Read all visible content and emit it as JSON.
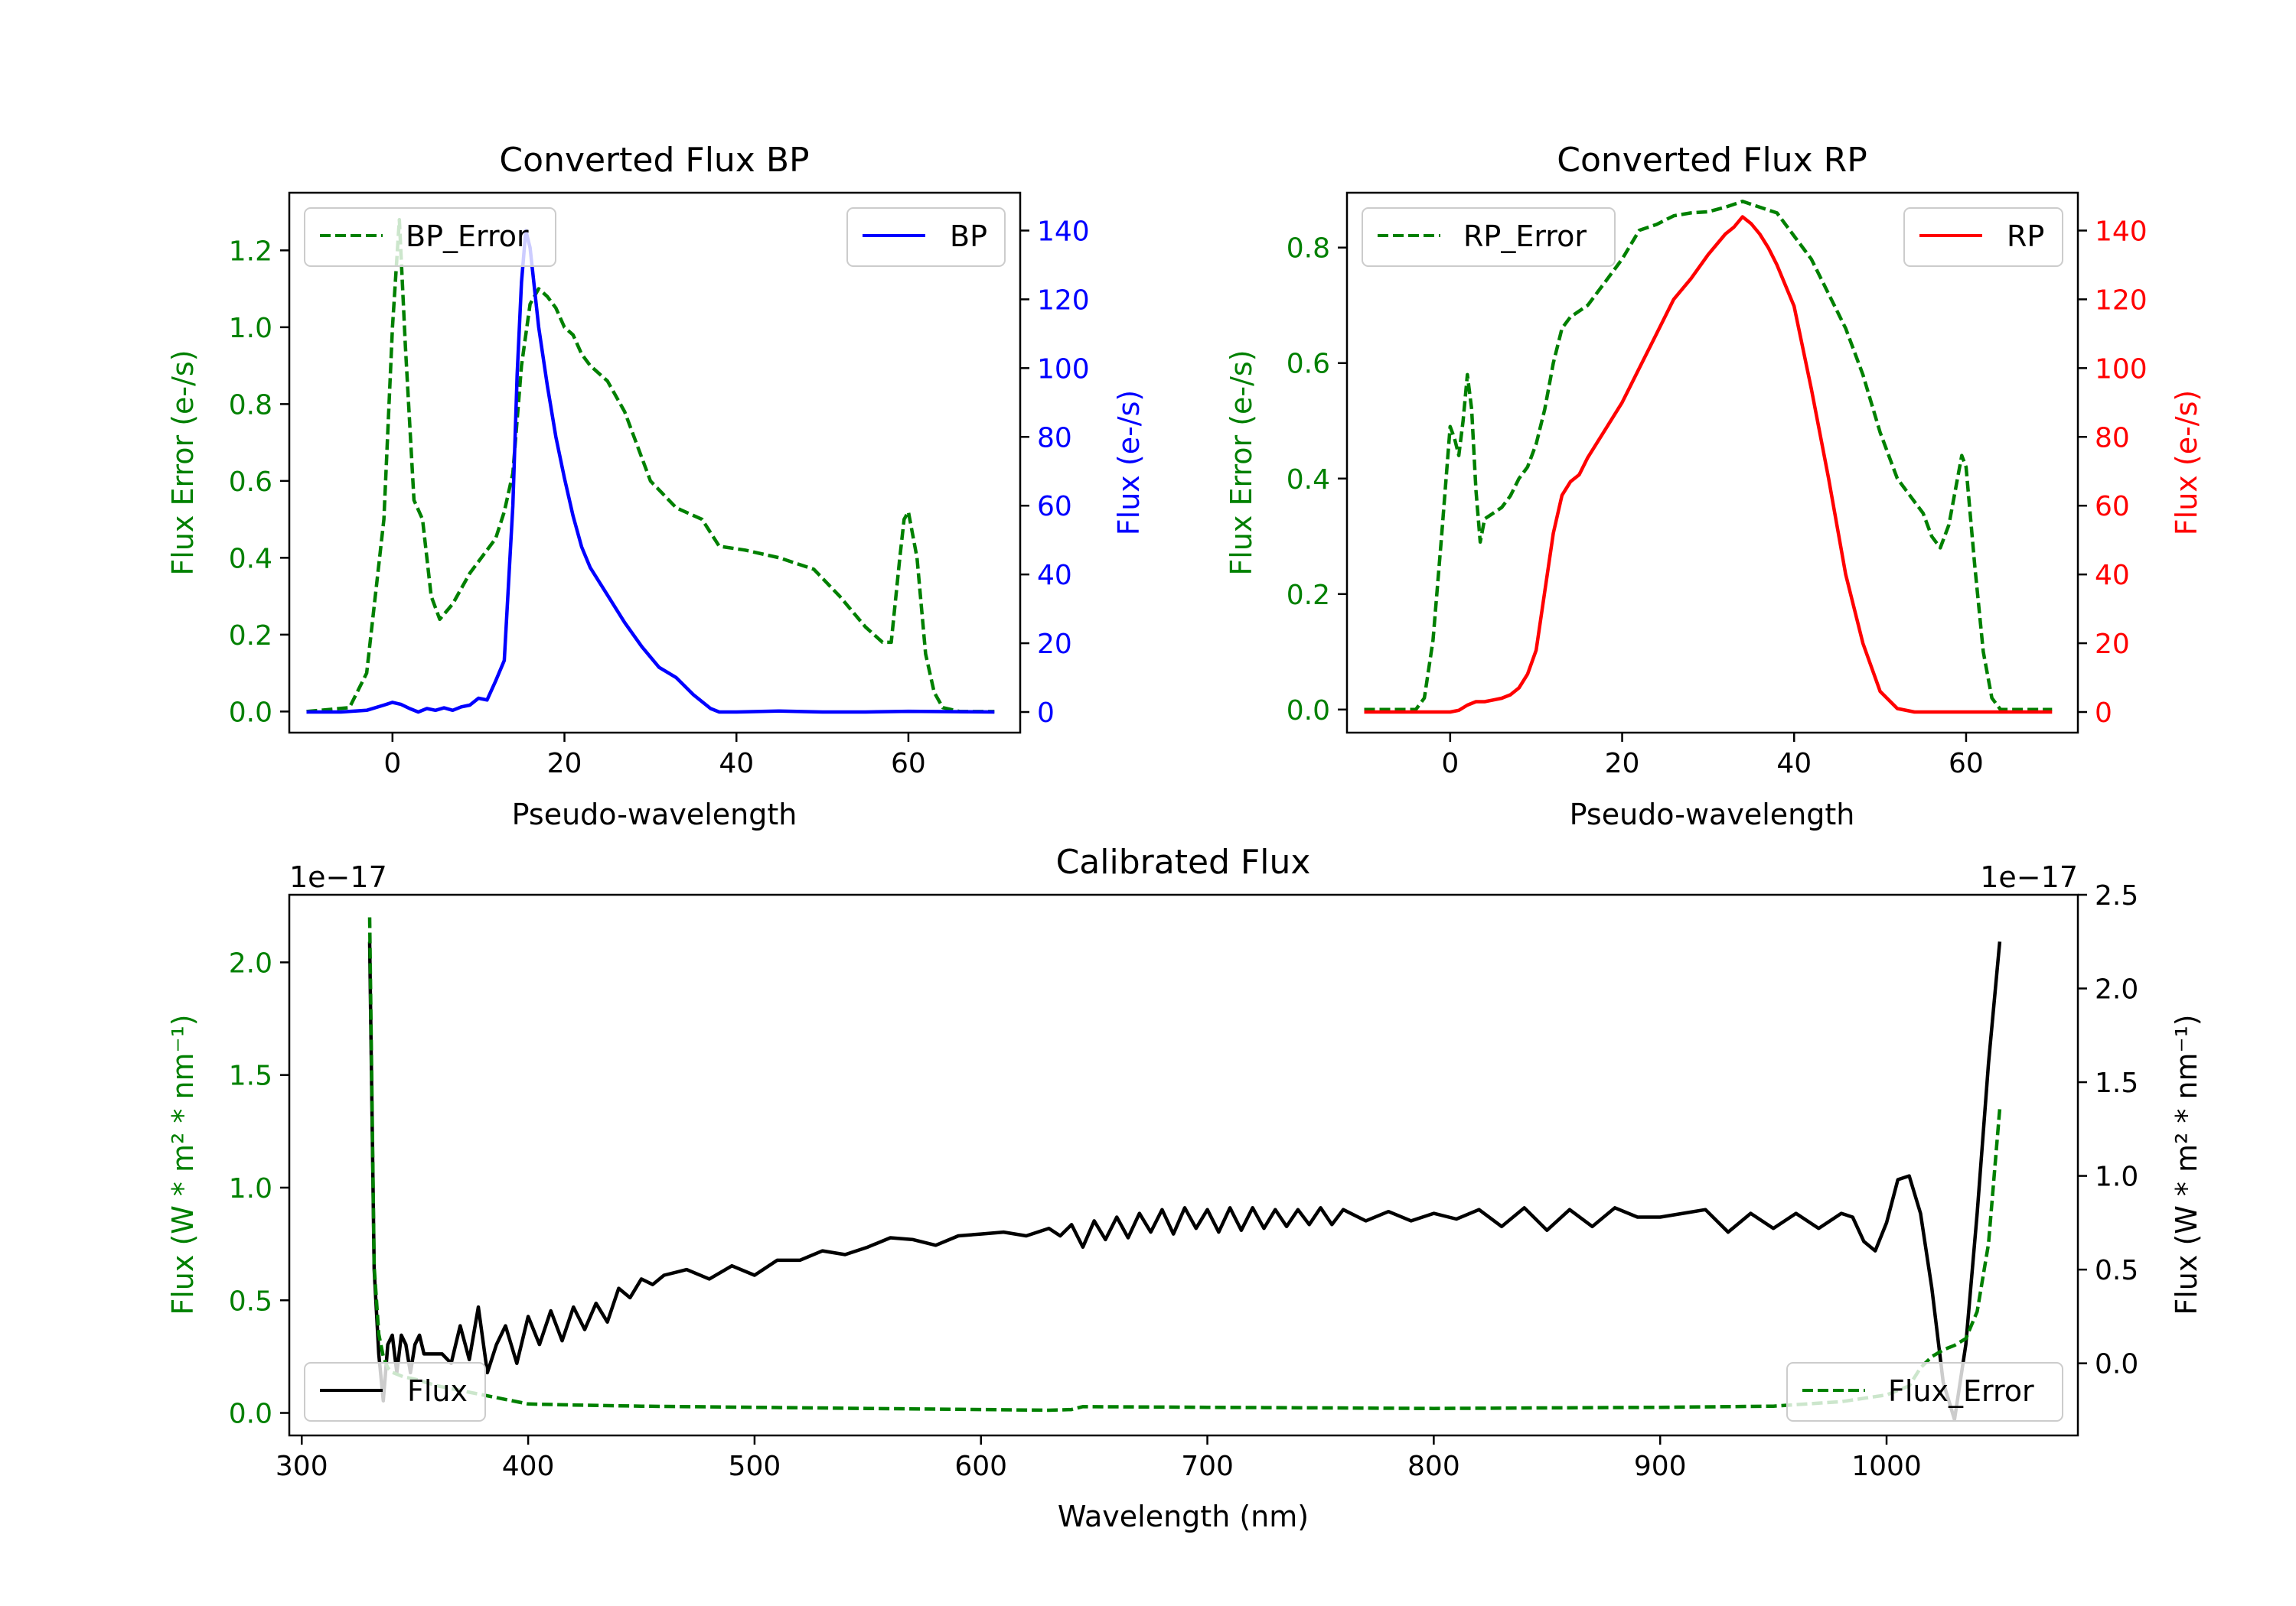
{
  "colors": {
    "bp": "#0000ff",
    "rp": "#ff0000",
    "err": "#008000",
    "flux": "#000000",
    "axis": "#000000"
  },
  "chart_data": [
    {
      "type": "line",
      "title": "Converted Flux BP",
      "xlabel": "Pseudo-wavelength",
      "ylabel_left": "Flux Error (e-/s)",
      "ylabel_right": "Flux (e-/s)",
      "xlim": [
        -12,
        73
      ],
      "ylim_left": [
        -0.055,
        1.35
      ],
      "ylim_right": [
        -6,
        151
      ],
      "xticks": [
        "0",
        "20",
        "40",
        "60"
      ],
      "yticks_left": [
        "0.0",
        "0.2",
        "0.4",
        "0.6",
        "0.8",
        "1.0",
        "1.2"
      ],
      "yticks_right": [
        "0",
        "20",
        "40",
        "60",
        "80",
        "100",
        "120",
        "140"
      ],
      "legend_left": "BP_Error",
      "legend_right": "BP",
      "series": [
        {
          "name": "BP_Error",
          "axis": "left",
          "style": "dashed",
          "color": "#008000",
          "x": [
            -10,
            -5,
            -3,
            -1,
            0,
            0.8,
            1.5,
            2.5,
            3.5,
            4.5,
            5.5,
            7,
            9,
            11,
            12,
            13,
            14,
            15,
            16,
            17,
            18,
            19,
            20,
            21,
            22,
            23,
            25,
            27,
            30,
            33,
            36,
            38,
            41,
            45,
            49,
            52,
            55,
            57,
            58,
            59,
            59.5,
            60,
            61,
            62,
            63,
            64,
            66,
            70
          ],
          "y": [
            0,
            0.01,
            0.1,
            0.5,
            1.0,
            1.28,
            0.95,
            0.55,
            0.5,
            0.3,
            0.24,
            0.28,
            0.36,
            0.42,
            0.45,
            0.52,
            0.62,
            0.9,
            1.06,
            1.1,
            1.08,
            1.05,
            1.0,
            0.98,
            0.93,
            0.9,
            0.86,
            0.78,
            0.6,
            0.53,
            0.5,
            0.43,
            0.42,
            0.4,
            0.37,
            0.3,
            0.22,
            0.18,
            0.18,
            0.4,
            0.5,
            0.52,
            0.4,
            0.15,
            0.05,
            0.01,
            0,
            0
          ]
        },
        {
          "name": "BP",
          "axis": "right",
          "style": "solid",
          "color": "#0000ff",
          "x": [
            -10,
            -6,
            -3,
            -1,
            0,
            1,
            2,
            3,
            4,
            5,
            6,
            7,
            8,
            9,
            10,
            11,
            12,
            13,
            14,
            14.5,
            15,
            15.5,
            16,
            17,
            18,
            19,
            20,
            21,
            22,
            23,
            25,
            27,
            29,
            31,
            33,
            35,
            37,
            38,
            40,
            45,
            50,
            55,
            60,
            70
          ],
          "y": [
            0,
            0,
            0.5,
            2,
            2.8,
            2.2,
            1,
            0,
            1,
            0.5,
            1.2,
            0.5,
            1.5,
            2,
            4,
            3.5,
            9,
            15,
            60,
            98,
            125,
            140,
            135,
            112,
            95,
            80,
            68,
            57,
            48,
            42,
            34,
            26,
            19,
            13,
            10,
            5,
            1,
            0,
            0,
            0.3,
            0,
            0,
            0.2,
            0
          ]
        }
      ]
    },
    {
      "type": "line",
      "title": "Converted Flux RP",
      "xlabel": "Pseudo-wavelength",
      "ylabel_left": "Flux Error (e-/s)",
      "ylabel_right": "Flux (e-/s)",
      "xlim": [
        -12,
        73
      ],
      "ylim_left": [
        -0.04,
        0.895
      ],
      "ylim_right": [
        -6,
        151
      ],
      "xticks": [
        "0",
        "20",
        "40",
        "60"
      ],
      "yticks_left": [
        "0.0",
        "0.2",
        "0.4",
        "0.6",
        "0.8"
      ],
      "yticks_right": [
        "0",
        "20",
        "40",
        "60",
        "80",
        "100",
        "120",
        "140"
      ],
      "legend_left": "RP_Error",
      "legend_right": "RP",
      "series": [
        {
          "name": "RP_Error",
          "axis": "left",
          "style": "dashed",
          "color": "#008000",
          "x": [
            -10,
            -4,
            -3,
            -2,
            -1,
            0,
            0.5,
            1,
            1.5,
            2,
            2.5,
            3,
            3.5,
            4,
            5,
            6,
            7,
            8,
            9,
            10,
            11,
            12,
            13,
            14,
            15,
            16,
            18,
            20,
            22,
            24,
            26,
            28,
            30,
            32,
            34,
            36,
            38,
            40,
            42,
            44,
            46,
            48,
            50,
            52,
            54,
            55,
            56,
            57,
            58,
            59,
            59.5,
            60,
            61,
            62,
            63,
            64,
            70
          ],
          "y": [
            0,
            0,
            0.02,
            0.12,
            0.3,
            0.49,
            0.47,
            0.44,
            0.5,
            0.58,
            0.52,
            0.38,
            0.29,
            0.33,
            0.34,
            0.35,
            0.37,
            0.4,
            0.42,
            0.46,
            0.52,
            0.6,
            0.66,
            0.68,
            0.69,
            0.7,
            0.74,
            0.78,
            0.83,
            0.84,
            0.855,
            0.86,
            0.862,
            0.87,
            0.88,
            0.87,
            0.86,
            0.82,
            0.78,
            0.72,
            0.66,
            0.58,
            0.48,
            0.4,
            0.36,
            0.34,
            0.3,
            0.28,
            0.32,
            0.4,
            0.44,
            0.42,
            0.25,
            0.1,
            0.02,
            0,
            0
          ]
        },
        {
          "name": "RP",
          "axis": "right",
          "style": "solid",
          "color": "#ff0000",
          "x": [
            -10,
            -4,
            -2,
            0,
            1,
            2,
            3,
            4,
            5,
            6,
            7,
            8,
            9,
            10,
            11,
            12,
            13,
            14,
            15,
            16,
            18,
            20,
            22,
            24,
            26,
            28,
            30,
            32,
            33,
            34,
            35,
            36,
            37,
            38,
            40,
            42,
            44,
            46,
            48,
            50,
            52,
            54,
            56,
            58,
            60,
            62,
            64,
            66,
            68,
            70
          ],
          "y": [
            0,
            0,
            0,
            0,
            0.5,
            2,
            3,
            3,
            3.5,
            4,
            5,
            7,
            11,
            18,
            35,
            52,
            63,
            67,
            69,
            74,
            82,
            90,
            100,
            110,
            120,
            126,
            133,
            139,
            141,
            144,
            142,
            139,
            135,
            130,
            118,
            94,
            68,
            40,
            20,
            6,
            1,
            0,
            0,
            0,
            0,
            0,
            0,
            0,
            0,
            0
          ]
        }
      ]
    },
    {
      "type": "line",
      "title": "Calibrated Flux",
      "xlabel": "Wavelength (nm)",
      "ylabel_left": "Flux (W * m² * nm⁻¹)",
      "ylabel_right": "Flux (W * m² * nm⁻¹)",
      "offset_left": "1e−17",
      "offset_right": "1e−17",
      "xlim": [
        294.5,
        1084.5
      ],
      "ylim_left": [
        -0.1,
        2.3
      ],
      "ylim_right": [
        -0.385,
        2.5
      ],
      "xticks": [
        "300",
        "400",
        "500",
        "600",
        "700",
        "800",
        "900",
        "1000"
      ],
      "yticks_left": [
        "0.0",
        "0.5",
        "1.0",
        "1.5",
        "2.0"
      ],
      "yticks_right": [
        "0.0",
        "0.5",
        "1.0",
        "1.5",
        "2.0",
        "2.5"
      ],
      "legend_left": "Flux",
      "legend_right": "Flux_Error",
      "series": [
        {
          "name": "Flux",
          "axis": "right",
          "style": "solid",
          "color": "#000000",
          "x": [
            330,
            332,
            334,
            336,
            338,
            340,
            342,
            344,
            346,
            348,
            350,
            352,
            354,
            358,
            362,
            366,
            370,
            374,
            378,
            382,
            386,
            390,
            395,
            400,
            405,
            410,
            415,
            420,
            425,
            430,
            435,
            440,
            445,
            450,
            455,
            460,
            470,
            480,
            490,
            500,
            510,
            520,
            530,
            540,
            550,
            560,
            570,
            580,
            590,
            600,
            610,
            620,
            630,
            635,
            640,
            645,
            650,
            655,
            660,
            665,
            670,
            675,
            680,
            685,
            690,
            695,
            700,
            705,
            710,
            715,
            720,
            725,
            730,
            735,
            740,
            745,
            750,
            755,
            760,
            770,
            780,
            790,
            800,
            810,
            820,
            830,
            840,
            850,
            860,
            870,
            880,
            890,
            900,
            910,
            920,
            930,
            940,
            950,
            960,
            970,
            980,
            985,
            990,
            995,
            1000,
            1005,
            1010,
            1015,
            1020,
            1025,
            1030,
            1035,
            1040,
            1045,
            1050
          ],
          "y": [
            2.25,
            0.5,
            0.05,
            -0.2,
            0.1,
            0.15,
            -0.05,
            0.15,
            0.1,
            -0.05,
            0.1,
            0.15,
            0.05,
            0.05,
            0.05,
            0.0,
            0.2,
            0.02,
            0.3,
            -0.05,
            0.1,
            0.2,
            0.0,
            0.25,
            0.1,
            0.28,
            0.12,
            0.3,
            0.18,
            0.32,
            0.22,
            0.4,
            0.35,
            0.45,
            0.42,
            0.47,
            0.5,
            0.45,
            0.52,
            0.47,
            0.55,
            0.55,
            0.6,
            0.58,
            0.62,
            0.67,
            0.66,
            0.63,
            0.68,
            0.69,
            0.7,
            0.68,
            0.72,
            0.68,
            0.74,
            0.62,
            0.76,
            0.66,
            0.78,
            0.67,
            0.8,
            0.7,
            0.82,
            0.69,
            0.83,
            0.72,
            0.82,
            0.7,
            0.83,
            0.71,
            0.83,
            0.72,
            0.82,
            0.73,
            0.82,
            0.74,
            0.83,
            0.74,
            0.82,
            0.76,
            0.81,
            0.76,
            0.8,
            0.77,
            0.82,
            0.73,
            0.83,
            0.71,
            0.82,
            0.73,
            0.83,
            0.78,
            0.78,
            0.8,
            0.82,
            0.7,
            0.8,
            0.72,
            0.8,
            0.72,
            0.8,
            0.78,
            0.65,
            0.6,
            0.75,
            0.98,
            1.0,
            0.8,
            0.4,
            -0.1,
            -0.3,
            0.1,
            0.8,
            1.6,
            2.25
          ]
        },
        {
          "name": "Flux_Error",
          "axis": "left",
          "style": "dashed",
          "color": "#008000",
          "x": [
            330,
            332,
            334,
            336,
            338,
            340,
            345,
            350,
            360,
            370,
            380,
            390,
            400,
            420,
            450,
            500,
            550,
            600,
            630,
            640,
            645,
            700,
            800,
            900,
            950,
            980,
            1000,
            1010,
            1015,
            1020,
            1025,
            1030,
            1035,
            1040,
            1045,
            1050
          ],
          "y": [
            2.2,
            0.65,
            0.35,
            0.25,
            0.2,
            0.18,
            0.16,
            0.15,
            0.12,
            0.1,
            0.08,
            0.06,
            0.04,
            0.035,
            0.03,
            0.025,
            0.02,
            0.015,
            0.012,
            0.015,
            0.028,
            0.025,
            0.02,
            0.025,
            0.03,
            0.05,
            0.08,
            0.12,
            0.2,
            0.25,
            0.28,
            0.3,
            0.33,
            0.45,
            0.75,
            1.35
          ]
        }
      ]
    }
  ]
}
